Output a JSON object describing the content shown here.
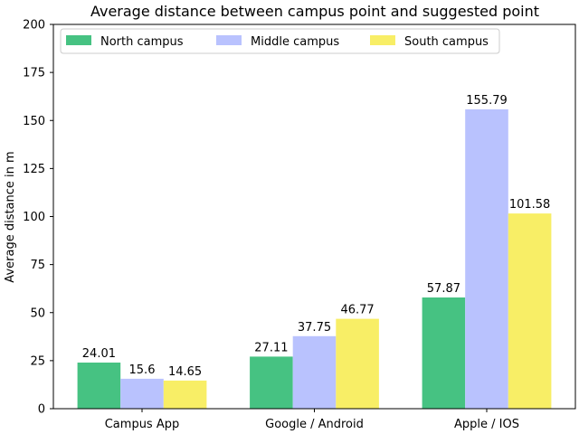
{
  "chart_data": {
    "type": "bar",
    "title": "Average distance between campus point and suggested point",
    "xlabel": "",
    "ylabel": "Average distance in m",
    "categories": [
      "Campus App",
      "Google / Android",
      "Apple / IOS"
    ],
    "series": [
      {
        "name": "North campus",
        "values": [
          24.01,
          27.11,
          57.87
        ],
        "labels": [
          "24.01",
          "27.11",
          "57.87"
        ],
        "color": "#46c282"
      },
      {
        "name": "Middle campus",
        "values": [
          15.6,
          37.75,
          155.79
        ],
        "labels": [
          "15.6",
          "37.75",
          "155.79"
        ],
        "color": "#b9c2fe"
      },
      {
        "name": "South campus",
        "values": [
          14.65,
          46.77,
          101.58
        ],
        "labels": [
          "14.65",
          "46.77",
          "101.58"
        ],
        "color": "#f8ee66"
      }
    ],
    "ylim": [
      0,
      200
    ],
    "yticks": [
      "0",
      "25",
      "50",
      "75",
      "100",
      "125",
      "150",
      "175",
      "200"
    ],
    "legend_position": "top-left",
    "grid": false
  }
}
